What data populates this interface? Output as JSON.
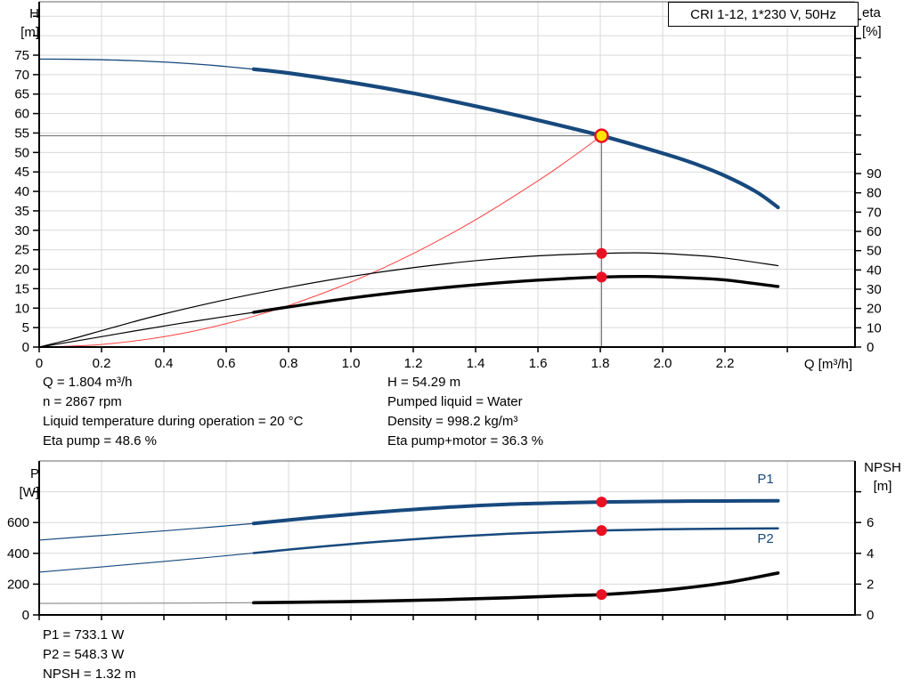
{
  "title_box": {
    "label": "CRI 1-12, 1*230 V, 50Hz"
  },
  "axes_titles": {
    "h": "H\n[m]",
    "eta": "eta\n[%]",
    "q": "Q [m³/h]",
    "p": "P\n[W]",
    "npsh": "NPSH\n[m]"
  },
  "annotations": {
    "duty_left": [
      "Q = 1.804 m³/h",
      "n = 2867 rpm",
      "Liquid temperature during operation = 20 °C",
      "Eta pump = 48.6 %"
    ],
    "duty_right": [
      "H = 54.29 m",
      "Pumped liquid = Water",
      "Density = 998.2 kg/m³",
      "Eta pump+motor = 36.3 %"
    ],
    "power_block": [
      "P1 = 733.1 W",
      "P2 = 548.3 W",
      "NPSH = 1.32 m"
    ]
  },
  "colors": {
    "curve_blue": "#17497d",
    "curve_black": "#000000",
    "system_red": "#ff4040",
    "dot_red": "#e81123",
    "duty_fill": "#ffe600",
    "grid": "#d9d9d9",
    "guide": "#7a7a7a",
    "npsh_thin": "#888888",
    "frame_top": "#666666"
  },
  "chart_data": [
    {
      "id": "qh-chart",
      "type": "line",
      "title": "CRI 1-12, 1*230 V, 50Hz",
      "x_axis": {
        "label": "Q [m³/h]",
        "min": 0,
        "max": 2.617,
        "tick_step": 0.2,
        "tick_max": 2.4,
        "grid_max": 2.4,
        "show_labels": true,
        "labels": [
          "0",
          "0.2",
          "0.4",
          "0.6",
          "0.8",
          "1.0",
          "1.2",
          "1.4",
          "1.6",
          "1.8",
          "2.0",
          "2.2"
        ]
      },
      "y_left": {
        "label": "H [m]",
        "min": 0,
        "max": 88.72,
        "tick_step": 5,
        "tick_max": 85,
        "grid_max": 85,
        "labels": [
          "0",
          "5",
          "10",
          "15",
          "20",
          "25",
          "30",
          "35",
          "40",
          "45",
          "50",
          "55",
          "60",
          "65",
          "70",
          "75"
        ]
      },
      "y_right": {
        "label": "eta [%]",
        "min": 0,
        "max": 179.1,
        "tick_step": 10,
        "tick_max": 170,
        "labels": [
          "0",
          "10",
          "20",
          "30",
          "40",
          "50",
          "60",
          "70",
          "80",
          "90"
        ]
      },
      "guides": [
        [
          1.804,
          0,
          1.804,
          54.29
        ],
        [
          0,
          54.29,
          1.804,
          54.29
        ]
      ],
      "series": [
        {
          "name": "system-curve",
          "axis": "left",
          "color": "#ff4040",
          "width": 1,
          "points": [
            [
              0,
              0
            ],
            [
              0.2,
              0.67
            ],
            [
              0.4,
              2.67
            ],
            [
              0.6,
              6.01
            ],
            [
              0.8,
              10.68
            ],
            [
              1.0,
              16.68
            ],
            [
              1.2,
              24.02
            ],
            [
              1.4,
              32.7
            ],
            [
              1.6,
              42.71
            ],
            [
              1.7,
              48.22
            ],
            [
              1.804,
              54.29
            ]
          ]
        },
        {
          "name": "eta-pump-curve",
          "axis": "right",
          "color": "#000000",
          "width": 1.2,
          "points": [
            [
              0,
              0
            ],
            [
              0.1,
              4
            ],
            [
              0.2,
              8.5
            ],
            [
              0.3,
              13
            ],
            [
              0.4,
              17.2
            ],
            [
              0.6,
              24.6
            ],
            [
              0.8,
              31
            ],
            [
              1.0,
              36.6
            ],
            [
              1.2,
              41.2
            ],
            [
              1.4,
              44.8
            ],
            [
              1.6,
              47.3
            ],
            [
              1.804,
              48.6
            ],
            [
              1.95,
              48.8
            ],
            [
              2.1,
              47.6
            ],
            [
              2.2,
              46.2
            ],
            [
              2.37,
              42.2
            ]
          ]
        },
        {
          "name": "eta-pump-motor-curve-ext",
          "axis": "right",
          "color": "#000000",
          "width": 1.2,
          "points": [
            [
              0,
              0
            ],
            [
              0.15,
              4
            ],
            [
              0.3,
              8.2
            ],
            [
              0.45,
              12.2
            ],
            [
              0.6,
              15.9
            ],
            [
              0.688,
              18.0
            ]
          ]
        },
        {
          "name": "eta-pump-motor-curve",
          "axis": "right",
          "color": "#000000",
          "width": 3.4,
          "points": [
            [
              0.688,
              18.0
            ],
            [
              0.8,
              20.8
            ],
            [
              1.0,
              25.4
            ],
            [
              1.2,
              29.2
            ],
            [
              1.4,
              32.3
            ],
            [
              1.6,
              34.7
            ],
            [
              1.804,
              36.3
            ],
            [
              1.95,
              36.6
            ],
            [
              2.1,
              35.8
            ],
            [
              2.2,
              34.8
            ],
            [
              2.37,
              31.4
            ]
          ]
        },
        {
          "name": "pump-curve-ext",
          "axis": "left",
          "color": "#17497d",
          "width": 1.3,
          "points": [
            [
              0,
              74.0
            ],
            [
              0.15,
              73.9
            ],
            [
              0.3,
              73.6
            ],
            [
              0.45,
              73.0
            ],
            [
              0.57,
              72.3
            ],
            [
              0.688,
              71.4
            ]
          ]
        },
        {
          "name": "pump-curve",
          "axis": "left",
          "color": "#17497d",
          "width": 4.2,
          "interactable": true,
          "points": [
            [
              0.688,
              71.4
            ],
            [
              0.8,
              70.4
            ],
            [
              1.0,
              68.0
            ],
            [
              1.2,
              65.2
            ],
            [
              1.4,
              61.9
            ],
            [
              1.6,
              58.3
            ],
            [
              1.804,
              54.29
            ],
            [
              2.0,
              49.8
            ],
            [
              2.1,
              47.2
            ],
            [
              2.2,
              44.0
            ],
            [
              2.3,
              39.9
            ],
            [
              2.37,
              35.9
            ]
          ]
        }
      ],
      "markers": [
        {
          "name": "eta-pump-point",
          "style": "dot",
          "x": 1.804,
          "value": 48.6,
          "axis": "right"
        },
        {
          "name": "eta-pump-motor-point",
          "style": "dot",
          "x": 1.804,
          "value": 36.3,
          "axis": "right"
        },
        {
          "name": "duty-point",
          "style": "duty",
          "x": 1.804,
          "value": 54.29,
          "axis": "left"
        }
      ],
      "curve_labels": []
    },
    {
      "id": "power-npsh-chart",
      "type": "line",
      "title": "",
      "x_axis": {
        "label": "Q [m³/h]",
        "min": 0,
        "max": 2.617,
        "tick_step": 0.2,
        "tick_max": 2.4,
        "grid_max": 2.4,
        "show_labels": false,
        "labels": []
      },
      "y_left": {
        "label": "P [W]",
        "min": 0,
        "max": 1000,
        "tick_step": 200,
        "tick_max": 800,
        "grid_max": 800,
        "labels": [
          "0",
          "200",
          "400",
          "600"
        ]
      },
      "y_right": {
        "label": "NPSH [m]",
        "min": 0,
        "max": 10,
        "tick_step": 2,
        "tick_max": 8,
        "labels": [
          "0",
          "2",
          "4",
          "6"
        ]
      },
      "guides": [],
      "series": [
        {
          "name": "p1-curve-ext",
          "axis": "left",
          "color": "#17497d",
          "width": 1.2,
          "points": [
            [
              0,
              486
            ],
            [
              0.2,
              516
            ],
            [
              0.4,
              546
            ],
            [
              0.55,
              570
            ],
            [
              0.688,
              594
            ]
          ]
        },
        {
          "name": "p1-curve",
          "axis": "left",
          "color": "#17497d",
          "width": 4,
          "points": [
            [
              0.688,
              594
            ],
            [
              0.9,
              636
            ],
            [
              1.1,
              670
            ],
            [
              1.3,
              698
            ],
            [
              1.5,
              718
            ],
            [
              1.7,
              729
            ],
            [
              1.804,
              733.1
            ],
            [
              2.0,
              738
            ],
            [
              2.2,
              740
            ],
            [
              2.37,
              741
            ]
          ]
        },
        {
          "name": "p2-curve-ext",
          "axis": "left",
          "color": "#17497d",
          "width": 1.1,
          "points": [
            [
              0,
              278
            ],
            [
              0.2,
              312
            ],
            [
              0.4,
              347
            ],
            [
              0.55,
              375
            ],
            [
              0.688,
              402
            ]
          ]
        },
        {
          "name": "p2-curve",
          "axis": "left",
          "color": "#17497d",
          "width": 2.5,
          "points": [
            [
              0.688,
              402
            ],
            [
              0.9,
              443
            ],
            [
              1.1,
              477
            ],
            [
              1.3,
              505
            ],
            [
              1.5,
              527
            ],
            [
              1.7,
              542
            ],
            [
              1.804,
              548.3
            ],
            [
              2.0,
              556
            ],
            [
              2.2,
              560
            ],
            [
              2.37,
              562
            ]
          ]
        },
        {
          "name": "npsh-curve-ext",
          "axis": "right",
          "color": "#888888",
          "width": 1.1,
          "points": [
            [
              0,
              0.75
            ],
            [
              0.35,
              0.76
            ],
            [
              0.688,
              0.79
            ]
          ]
        },
        {
          "name": "npsh-curve",
          "axis": "right",
          "color": "#000000",
          "width": 3.6,
          "points": [
            [
              0.688,
              0.79
            ],
            [
              0.9,
              0.84
            ],
            [
              1.1,
              0.9
            ],
            [
              1.3,
              0.99
            ],
            [
              1.5,
              1.11
            ],
            [
              1.7,
              1.25
            ],
            [
              1.804,
              1.32
            ],
            [
              2.0,
              1.6
            ],
            [
              2.2,
              2.08
            ],
            [
              2.37,
              2.72
            ]
          ]
        }
      ],
      "markers": [
        {
          "name": "p1-point",
          "style": "dot",
          "x": 1.804,
          "value": 733.1,
          "axis": "left"
        },
        {
          "name": "p2-point",
          "style": "dot",
          "x": 1.804,
          "value": 548.3,
          "axis": "left"
        },
        {
          "name": "npsh-point",
          "style": "dot",
          "x": 1.804,
          "value": 1.32,
          "axis": "right"
        }
      ],
      "curve_labels": [
        {
          "name": "p1-curve-label",
          "text": "P1",
          "x": 2.33,
          "y": 855,
          "color": "#17497d"
        },
        {
          "name": "p2-curve-label",
          "text": "P2",
          "x": 2.33,
          "y": 468,
          "color": "#17497d"
        }
      ]
    }
  ]
}
